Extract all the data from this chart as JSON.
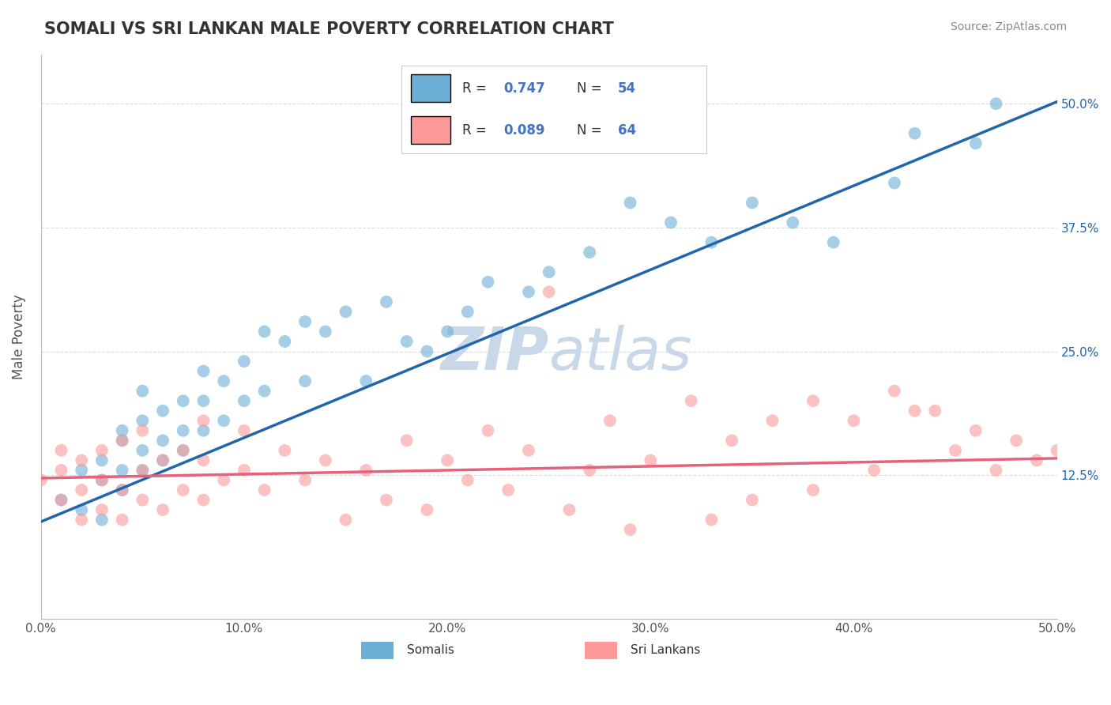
{
  "title": "SOMALI VS SRI LANKAN MALE POVERTY CORRELATION CHART",
  "source_text": "Source: ZipAtlas.com",
  "ylabel": "Male Poverty",
  "xlim": [
    0.0,
    0.5
  ],
  "ylim": [
    -0.02,
    0.55
  ],
  "xticks": [
    0.0,
    0.1,
    0.2,
    0.3,
    0.4,
    0.5
  ],
  "yticks": [
    0.125,
    0.25,
    0.375,
    0.5
  ],
  "ytick_labels": [
    "12.5%",
    "25.0%",
    "37.5%",
    "50.0%"
  ],
  "xtick_labels": [
    "0.0%",
    "10.0%",
    "20.0%",
    "30.0%",
    "40.0%",
    "50.0%"
  ],
  "somali_R": 0.747,
  "somali_N": 54,
  "srilanka_R": 0.089,
  "srilanka_N": 64,
  "somali_color": "#6baed6",
  "srilanka_color": "#fb9a99",
  "somali_line_color": "#2166ac",
  "srilanka_line_color": "#e8607a",
  "background_color": "#ffffff",
  "grid_color": "#cccccc",
  "title_color": "#333333",
  "watermark_color": "#c8d8e8",
  "legend_somali_label": "Somalis",
  "legend_srilanka_label": "Sri Lankans",
  "num_text_color": "#4472c4",
  "somali_x": [
    0.01,
    0.02,
    0.02,
    0.03,
    0.03,
    0.03,
    0.04,
    0.04,
    0.04,
    0.04,
    0.05,
    0.05,
    0.05,
    0.05,
    0.06,
    0.06,
    0.06,
    0.07,
    0.07,
    0.07,
    0.08,
    0.08,
    0.08,
    0.09,
    0.09,
    0.1,
    0.1,
    0.11,
    0.11,
    0.12,
    0.13,
    0.13,
    0.14,
    0.15,
    0.16,
    0.17,
    0.18,
    0.19,
    0.2,
    0.21,
    0.22,
    0.24,
    0.25,
    0.27,
    0.29,
    0.31,
    0.33,
    0.35,
    0.37,
    0.39,
    0.42,
    0.43,
    0.46,
    0.47
  ],
  "somali_y": [
    0.1,
    0.09,
    0.13,
    0.08,
    0.12,
    0.14,
    0.11,
    0.13,
    0.16,
    0.17,
    0.13,
    0.15,
    0.18,
    0.21,
    0.14,
    0.16,
    0.19,
    0.15,
    0.17,
    0.2,
    0.17,
    0.2,
    0.23,
    0.18,
    0.22,
    0.2,
    0.24,
    0.21,
    0.27,
    0.26,
    0.22,
    0.28,
    0.27,
    0.29,
    0.22,
    0.3,
    0.26,
    0.25,
    0.27,
    0.29,
    0.32,
    0.31,
    0.33,
    0.35,
    0.4,
    0.38,
    0.36,
    0.4,
    0.38,
    0.36,
    0.42,
    0.47,
    0.46,
    0.5
  ],
  "srilanka_x": [
    0.0,
    0.01,
    0.01,
    0.01,
    0.02,
    0.02,
    0.02,
    0.03,
    0.03,
    0.03,
    0.04,
    0.04,
    0.04,
    0.05,
    0.05,
    0.05,
    0.06,
    0.06,
    0.07,
    0.07,
    0.08,
    0.08,
    0.08,
    0.09,
    0.1,
    0.1,
    0.11,
    0.12,
    0.13,
    0.14,
    0.15,
    0.16,
    0.17,
    0.18,
    0.19,
    0.2,
    0.21,
    0.22,
    0.23,
    0.24,
    0.25,
    0.26,
    0.27,
    0.28,
    0.3,
    0.32,
    0.34,
    0.36,
    0.38,
    0.4,
    0.41,
    0.42,
    0.44,
    0.45,
    0.46,
    0.47,
    0.48,
    0.49,
    0.5,
    0.35,
    0.33,
    0.29,
    0.38,
    0.43
  ],
  "srilanka_y": [
    0.12,
    0.1,
    0.13,
    0.15,
    0.08,
    0.11,
    0.14,
    0.09,
    0.12,
    0.15,
    0.08,
    0.11,
    0.16,
    0.1,
    0.13,
    0.17,
    0.09,
    0.14,
    0.11,
    0.15,
    0.1,
    0.14,
    0.18,
    0.12,
    0.13,
    0.17,
    0.11,
    0.15,
    0.12,
    0.14,
    0.08,
    0.13,
    0.1,
    0.16,
    0.09,
    0.14,
    0.12,
    0.17,
    0.11,
    0.15,
    0.31,
    0.09,
    0.13,
    0.18,
    0.14,
    0.2,
    0.16,
    0.18,
    0.11,
    0.18,
    0.13,
    0.21,
    0.19,
    0.15,
    0.17,
    0.13,
    0.16,
    0.14,
    0.15,
    0.1,
    0.08,
    0.07,
    0.2,
    0.19
  ],
  "somali_line_x": [
    0.0,
    0.5
  ],
  "somali_line_y": [
    0.078,
    0.502
  ],
  "srilanka_line_x": [
    0.0,
    0.5
  ],
  "srilanka_line_y": [
    0.122,
    0.142
  ]
}
